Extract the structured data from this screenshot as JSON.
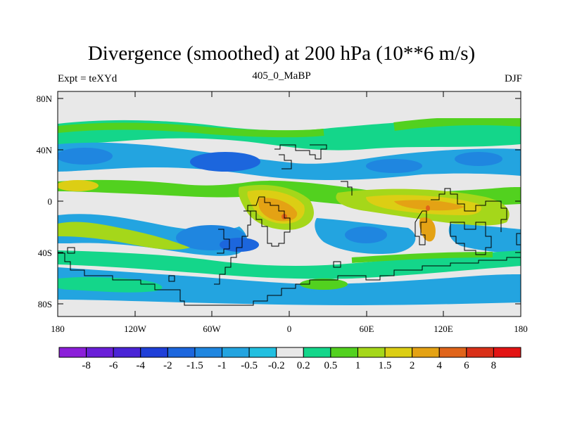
{
  "title": "Divergence (smoothed) at 200 hPa (10**6 m/s)",
  "subtitle": "405_0_MaBP",
  "left_label": "Expt = teXYd",
  "right_label": "DJF",
  "map": {
    "lat_ticks": [
      "80N",
      "40N",
      "0",
      "40S",
      "80S"
    ],
    "lon_ticks": [
      "180",
      "120W",
      "60W",
      "0",
      "60E",
      "120E",
      "180"
    ]
  },
  "colorbar": {
    "labels": [
      "-8",
      "-6",
      "-4",
      "-2",
      "-1.5",
      "-1",
      "-0.5",
      "-0.2",
      "0.2",
      "0.5",
      "1",
      "1.5",
      "2",
      "4",
      "6",
      "8"
    ],
    "colors": [
      "#8b1fd9",
      "#6a1fd8",
      "#4a24d6",
      "#1f3fd8",
      "#1c66dd",
      "#1f86e0",
      "#23a4e0",
      "#22bfe0",
      "#e8e8e8",
      "#14d68a",
      "#52d11f",
      "#a5d71a",
      "#dcce14",
      "#e4a214",
      "#e0641a",
      "#d93018",
      "#e31414"
    ]
  }
}
